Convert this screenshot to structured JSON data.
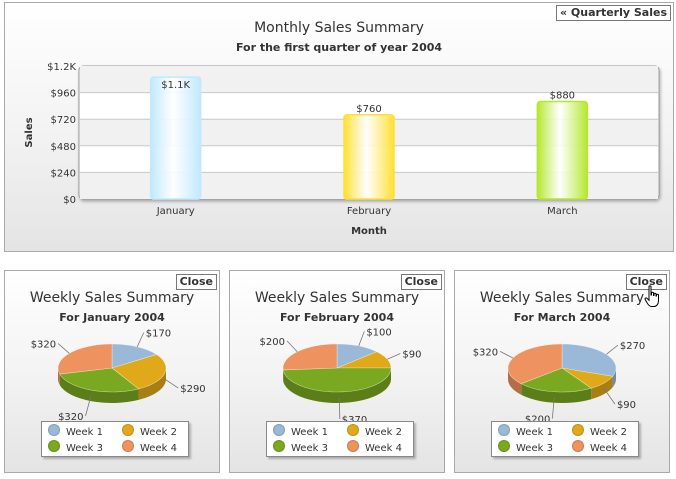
{
  "quarterly_button": "« Quarterly Sales",
  "close_label": "Close",
  "colors": {
    "jan_bar": "#bfe9ff",
    "feb_bar": "#ffe033",
    "mar_bar": "#b4e82c",
    "week1": "#9ab8d8",
    "week2": "#e0a91a",
    "week3": "#7aa820",
    "week4": "#ee9260"
  },
  "chart_data": [
    {
      "type": "bar",
      "title": "Monthly Sales Summary",
      "subtitle": "For the first quarter of year 2004",
      "xlabel": "Month",
      "ylabel": "Sales",
      "categories": [
        "January",
        "February",
        "March"
      ],
      "values": [
        1100,
        760,
        880
      ],
      "data_labels": [
        "$1.1K",
        "$760",
        "$880"
      ],
      "y_ticks": [
        "$0",
        "$240",
        "$480",
        "$720",
        "$960",
        "$1.2K"
      ],
      "ylim": [
        0,
        1200
      ],
      "grid": true
    },
    {
      "type": "pie",
      "title": "Weekly Sales Summary",
      "subtitle": "For January 2004",
      "categories": [
        "Week 1",
        "Week 2",
        "Week 3",
        "Week 4"
      ],
      "values": [
        170,
        290,
        320,
        320
      ],
      "data_labels": [
        "$170",
        "$290",
        "$320",
        "$320"
      ]
    },
    {
      "type": "pie",
      "title": "Weekly Sales Summary",
      "subtitle": "For February 2004",
      "categories": [
        "Week 1",
        "Week 2",
        "Week 3",
        "Week 4"
      ],
      "values": [
        100,
        90,
        370,
        200
      ],
      "data_labels": [
        "$100",
        "$90",
        "$370",
        "$200"
      ]
    },
    {
      "type": "pie",
      "title": "Weekly Sales Summary",
      "subtitle": "For March 2004",
      "categories": [
        "Week 1",
        "Week 2",
        "Week 3",
        "Week 4"
      ],
      "values": [
        270,
        90,
        200,
        320
      ],
      "data_labels": [
        "$270",
        "$90",
        "$200",
        "$320"
      ]
    }
  ]
}
